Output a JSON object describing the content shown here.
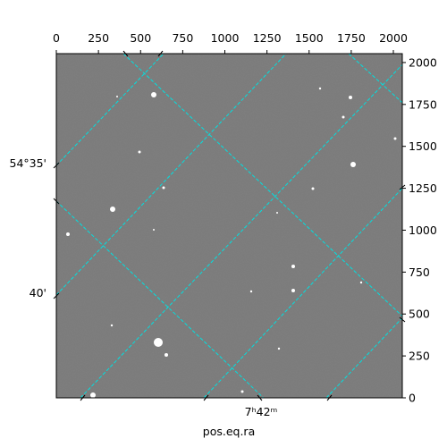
{
  "chart_data": {
    "type": "image",
    "xlim": [
      0,
      2053
    ],
    "ylim": [
      0,
      2053
    ],
    "xticks": [
      0,
      250,
      500,
      750,
      1000,
      1250,
      1500,
      1750,
      2000
    ],
    "yticks": [
      0,
      250,
      500,
      750,
      1000,
      1250,
      1500,
      1750,
      2000
    ],
    "dec_labels": [
      "54°35'",
      "40'"
    ],
    "ra_labels": [
      "7ʰ42ᵐ"
    ],
    "xlabel": "pos.eq.ra",
    "grid": true,
    "grid_color": "#00e0e0"
  }
}
